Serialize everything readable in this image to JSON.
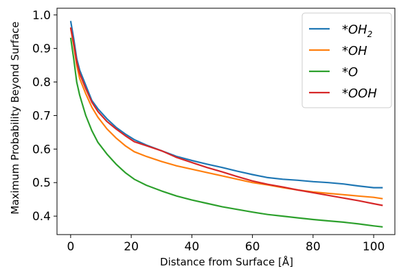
{
  "chart_data": {
    "type": "line",
    "title": "",
    "xlabel": "Distance from Surface [Å]",
    "ylabel": "Maximum Probability Beyond Surface",
    "xlim": [
      -4.5,
      107
    ],
    "ylim": [
      0.345,
      1.02
    ],
    "xticks": [
      0,
      20,
      40,
      60,
      80,
      100
    ],
    "yticks": [
      0.4,
      0.5,
      0.6,
      0.7,
      0.8,
      0.9,
      1.0
    ],
    "xtick_labels": [
      "0",
      "20",
      "40",
      "60",
      "80",
      "100"
    ],
    "ytick_labels": [
      "0.4",
      "0.5",
      "0.6",
      "0.7",
      "0.8",
      "0.9",
      "1.0"
    ],
    "grid": false,
    "legend_position": "top-right",
    "series": [
      {
        "name": "*OH₂",
        "label_base": "*OH",
        "label_sub": "2",
        "color": "#1f77b4",
        "x": [
          0,
          1,
          2,
          3,
          5,
          7,
          9,
          12,
          15,
          18,
          21,
          25,
          30,
          35,
          40,
          45,
          50,
          55,
          60,
          65,
          70,
          75,
          80,
          85,
          90,
          95,
          100,
          103
        ],
        "y": [
          0.982,
          0.93,
          0.87,
          0.835,
          0.79,
          0.745,
          0.72,
          0.69,
          0.665,
          0.645,
          0.628,
          0.612,
          0.595,
          0.578,
          0.566,
          0.555,
          0.545,
          0.534,
          0.524,
          0.515,
          0.51,
          0.507,
          0.503,
          0.5,
          0.496,
          0.49,
          0.485,
          0.485
        ]
      },
      {
        "name": "*OH",
        "label_base": "*OH",
        "label_sub": "",
        "color": "#ff7f0e",
        "x": [
          0,
          1,
          2,
          3,
          5,
          7,
          9,
          12,
          15,
          18,
          21,
          25,
          30,
          35,
          40,
          45,
          50,
          55,
          60,
          65,
          70,
          75,
          80,
          85,
          90,
          95,
          100,
          103
        ],
        "y": [
          0.96,
          0.91,
          0.85,
          0.81,
          0.765,
          0.725,
          0.695,
          0.66,
          0.633,
          0.61,
          0.592,
          0.578,
          0.563,
          0.55,
          0.54,
          0.53,
          0.52,
          0.51,
          0.5,
          0.493,
          0.485,
          0.478,
          0.472,
          0.468,
          0.464,
          0.46,
          0.456,
          0.452
        ]
      },
      {
        "name": "*O",
        "label_base": "*O",
        "label_sub": "",
        "color": "#2ca02c",
        "x": [
          0,
          1,
          2,
          3,
          5,
          7,
          9,
          12,
          15,
          18,
          21,
          25,
          30,
          35,
          40,
          45,
          50,
          55,
          60,
          65,
          70,
          75,
          80,
          85,
          90,
          95,
          100,
          103
        ],
        "y": [
          0.932,
          0.87,
          0.8,
          0.76,
          0.7,
          0.655,
          0.62,
          0.585,
          0.555,
          0.53,
          0.51,
          0.492,
          0.475,
          0.46,
          0.448,
          0.438,
          0.428,
          0.42,
          0.412,
          0.405,
          0.4,
          0.395,
          0.39,
          0.386,
          0.382,
          0.377,
          0.371,
          0.368
        ]
      },
      {
        "name": "*OOH",
        "label_base": "*OOH",
        "label_sub": "",
        "color": "#d62728",
        "x": [
          0,
          1,
          2,
          3,
          5,
          7,
          9,
          12,
          15,
          18,
          21,
          25,
          30,
          35,
          40,
          45,
          50,
          55,
          60,
          65,
          70,
          75,
          80,
          85,
          90,
          95,
          100,
          103
        ],
        "y": [
          0.963,
          0.915,
          0.86,
          0.825,
          0.78,
          0.74,
          0.712,
          0.682,
          0.66,
          0.64,
          0.622,
          0.61,
          0.595,
          0.575,
          0.56,
          0.545,
          0.532,
          0.518,
          0.505,
          0.495,
          0.487,
          0.478,
          0.47,
          0.462,
          0.454,
          0.446,
          0.437,
          0.432
        ]
      }
    ]
  }
}
